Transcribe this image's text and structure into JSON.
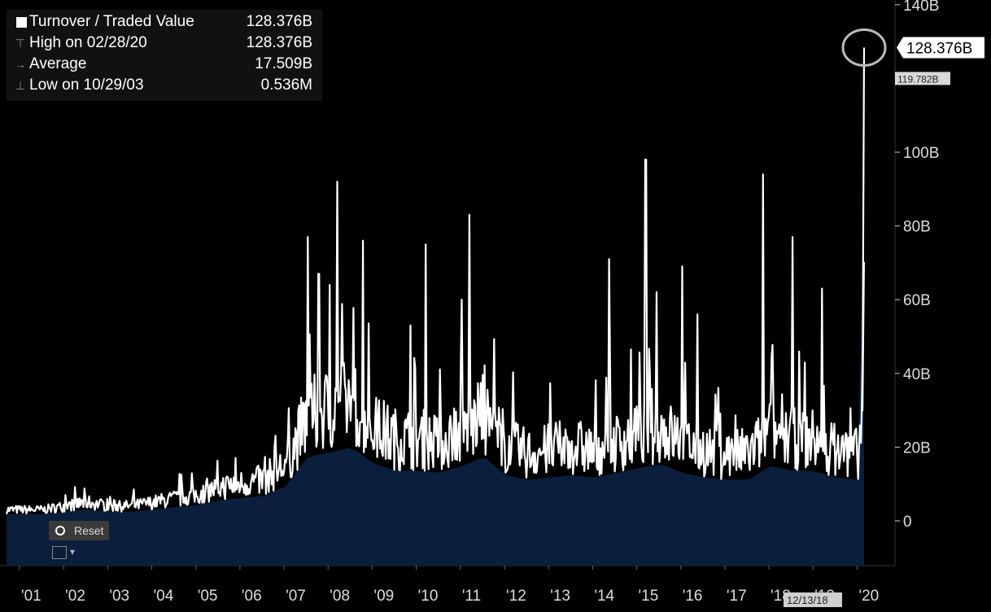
{
  "chart_data": {
    "type": "area",
    "title": "",
    "xlabel": "",
    "ylabel": "",
    "ylim": [
      -12,
      140
    ],
    "y_ticks": [
      0,
      20,
      40,
      60,
      80,
      100,
      120,
      140
    ],
    "y_tick_labels": [
      "0",
      "20B",
      "40B",
      "60B",
      "80B",
      "100B",
      "",
      "140B"
    ],
    "x_range": [
      "2000-09",
      "2020-06"
    ],
    "x_tick_labels": [
      "'01",
      "'02",
      "'03",
      "'04",
      "'05",
      "'06",
      "'07",
      "'08",
      "'09",
      "'10",
      "'11",
      "'12",
      "'13",
      "'14",
      "'15",
      "'16",
      "'17",
      "'18",
      "'19",
      "'20"
    ],
    "x_ticks": [
      "2001-01",
      "2002-01",
      "2003-01",
      "2004-01",
      "2005-01",
      "2006-01",
      "2007-01",
      "2008-01",
      "2009-01",
      "2010-01",
      "2011-01",
      "2012-01",
      "2013-01",
      "2014-01",
      "2015-01",
      "2016-01",
      "2017-01",
      "2018-01",
      "2019-01",
      "2020-01"
    ],
    "series": [
      {
        "name": "Turnover / Traded Value",
        "unit": "B",
        "points": [
          [
            "2000-09",
            3
          ],
          [
            "2001-01",
            3
          ],
          [
            "2001-07",
            3
          ],
          [
            "2002-01",
            4
          ],
          [
            "2002-07",
            5
          ],
          [
            "2003-01",
            4
          ],
          [
            "2003-07",
            4
          ],
          [
            "2004-01",
            5
          ],
          [
            "2004-07",
            6
          ],
          [
            "2005-01",
            7
          ],
          [
            "2005-07",
            9
          ],
          [
            "2006-01",
            10
          ],
          [
            "2006-07",
            11
          ],
          [
            "2007-01",
            15
          ],
          [
            "2007-07",
            28
          ],
          [
            "2008-01",
            30
          ],
          [
            "2008-07",
            32
          ],
          [
            "2009-01",
            25
          ],
          [
            "2009-07",
            22
          ],
          [
            "2010-01",
            22
          ],
          [
            "2010-07",
            21
          ],
          [
            "2011-01",
            24
          ],
          [
            "2011-07",
            28
          ],
          [
            "2012-01",
            20
          ],
          [
            "2012-07",
            18
          ],
          [
            "2013-01",
            19
          ],
          [
            "2013-07",
            20
          ],
          [
            "2014-01",
            19
          ],
          [
            "2014-07",
            21
          ],
          [
            "2015-01",
            23
          ],
          [
            "2015-07",
            25
          ],
          [
            "2016-01",
            21
          ],
          [
            "2016-07",
            19
          ],
          [
            "2017-01",
            18
          ],
          [
            "2017-07",
            18
          ],
          [
            "2018-01",
            24
          ],
          [
            "2018-07",
            22
          ],
          [
            "2018-12",
            22
          ],
          [
            "2019-07",
            19
          ],
          [
            "2020-01",
            18
          ],
          [
            "2020-02-15",
            30
          ],
          [
            "2020-02-28",
            128.376
          ]
        ],
        "peaks": [
          [
            "2007-07",
            77
          ],
          [
            "2007-10",
            67
          ],
          [
            "2008-01",
            64
          ],
          [
            "2008-03",
            92
          ],
          [
            "2008-10",
            76
          ],
          [
            "2009-11",
            53
          ],
          [
            "2010-03",
            75
          ],
          [
            "2011-01",
            60
          ],
          [
            "2011-03",
            83
          ],
          [
            "2014-05",
            71
          ],
          [
            "2015-03",
            98
          ],
          [
            "2015-06",
            62
          ],
          [
            "2016-01",
            69
          ],
          [
            "2016-05",
            56
          ],
          [
            "2017-11",
            94
          ],
          [
            "2018-07",
            77
          ],
          [
            "2019-03",
            63
          ],
          [
            "2020-02-27",
            70
          ]
        ]
      }
    ],
    "legend": {
      "title_name": "Turnover / Traded Value",
      "title_value": "128.376B",
      "high_label": "High on 02/28/20",
      "high_value": "128.376B",
      "avg_label": "Average",
      "avg_value": "17.509B",
      "low_label": "Low on 10/29/03",
      "low_value": "0.536M",
      "placement": "top-left"
    },
    "last_value_label": "128.376B",
    "crosshair_value_label": "119.782B",
    "crosshair_date_label": "12/13/18",
    "colors": {
      "line": "#ffffff",
      "fill": "#0b1e3b",
      "background": "#000000",
      "axis_text": "#dddddd",
      "value_badge": "#ffffff"
    }
  },
  "controls": {
    "reset_label": "Reset"
  },
  "icons": {
    "reset": "reset-icon",
    "chart_type": "line-chart-icon"
  }
}
